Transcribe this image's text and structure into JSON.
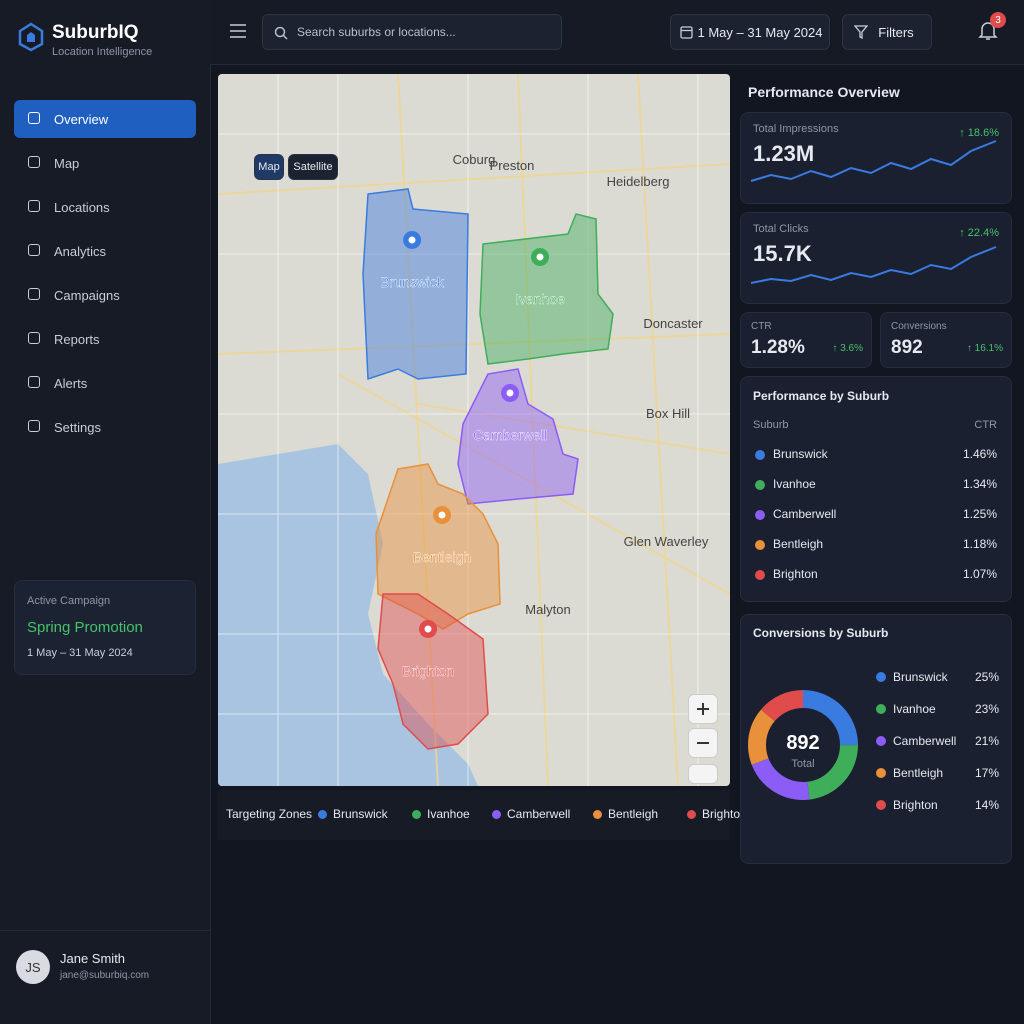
{
  "app": {
    "name": "SuburbIQ",
    "tagline": "Location Intelligence"
  },
  "nav": [
    "Overview",
    "Map",
    "Locations",
    "Analytics",
    "Campaigns",
    "Reports",
    "Alerts",
    "Settings"
  ],
  "campaign": {
    "label": "Active Campaign",
    "name": "Spring Promotion",
    "dates": "1 May – 31 May 2024"
  },
  "user": {
    "initials": "JS",
    "name": "Jane Smith",
    "email": "jane@suburbiq.com"
  },
  "search_placeholder": "Search suburbs or locations...",
  "date_range": "1 May – 31 May 2024",
  "filters": "Filters",
  "notifications": "3",
  "map": {
    "tabs": [
      "Map",
      "Satellite"
    ],
    "places": [
      "Coburg",
      "Preston",
      "Heidelberg",
      "Doncaster",
      "Box Hill",
      "Glen Waverley",
      "Malyton"
    ],
    "zones": [
      {
        "name": "Brunswick",
        "color": "#3a7be0"
      },
      {
        "name": "Ivanhoe",
        "color": "#3fae5a"
      },
      {
        "name": "Camberwell",
        "color": "#8b5cf6"
      },
      {
        "name": "Bentleigh",
        "color": "#e8903a"
      },
      {
        "name": "Brighton",
        "color": "#e04b4b"
      }
    ],
    "legend_title": "Targeting Zones"
  },
  "performance": {
    "title": "Performance Overview",
    "metrics": [
      {
        "label": "Total Impressions",
        "value": "1.23M",
        "change": "↑ 18.6%"
      },
      {
        "label": "Total Clicks",
        "value": "15.7K",
        "change": "↑ 22.4%"
      },
      {
        "label": "CTR",
        "value": "1.28%",
        "change": "↑ 3.6%"
      },
      {
        "label": "Conversions",
        "value": "892",
        "change": "↑ 16.1%"
      }
    ]
  },
  "suburb_table": {
    "title": "Performance by Suburb",
    "columns": [
      "Suburb",
      "CTR"
    ],
    "rows": [
      [
        "Brunswick",
        "1.46%"
      ],
      [
        "Ivanhoe",
        "1.34%"
      ],
      [
        "Camberwell",
        "1.25%"
      ],
      [
        "Bentleigh",
        "1.18%"
      ],
      [
        "Brighton",
        "1.07%"
      ]
    ]
  },
  "chart_data": {
    "type": "pie",
    "title": "Conversions by Suburb",
    "categories": [
      "Brunswick",
      "Ivanhoe",
      "Camberwell",
      "Bentleigh",
      "Brighton"
    ],
    "values": [
      25,
      23,
      21,
      17,
      14
    ],
    "value_labels": [
      "25%",
      "23%",
      "21%",
      "17%",
      "14%"
    ],
    "colors": [
      "#3a7be0",
      "#3fae5a",
      "#8b5cf6",
      "#e8903a",
      "#e04b4b"
    ],
    "center_value": "892",
    "center_label": "Total"
  }
}
